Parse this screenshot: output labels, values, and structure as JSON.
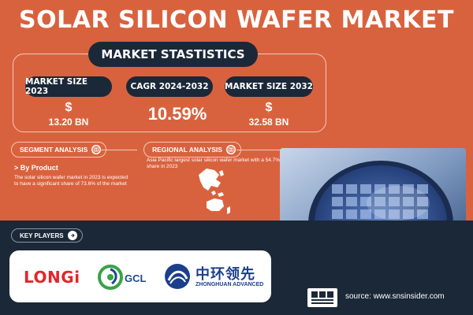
{
  "title": "SOLAR SILICON WAFER MARKET",
  "stats": {
    "heading": "MARKET STASTISTICS",
    "market_size_2023": {
      "label": "MARKET SIZE 2023",
      "currency": "$",
      "value": "13.20 BN"
    },
    "cagr": {
      "label": "CAGR 2024-2032",
      "value": "10.59%"
    },
    "market_size_2032": {
      "label": "MARKET SIZE 2032",
      "currency": "$",
      "value": "32.58 BN"
    }
  },
  "segment": {
    "label": "SEGMENT ANALYSIS",
    "icon": "globe-icon",
    "subheading": "> By Product",
    "text": "The solar silicon wafer market in 2023 is expected to have a significant share of 73.6% of the market"
  },
  "regional": {
    "label": "REGIONAL ANALYSIS",
    "icon": "globe-icon",
    "text": "Asia Pacific largest solar silicon wafer market with a 54.7% share in 2023"
  },
  "key_players": {
    "label": "KEY PLAYERS",
    "logos": [
      {
        "name": "LONGi"
      },
      {
        "name": "GCL"
      },
      {
        "name": "中环领先",
        "subtitle": "ZHONGHUAN ADVANCED"
      }
    ]
  },
  "source": {
    "text": "source: www.snsinsider.com"
  },
  "colors": {
    "background": "#d9623e",
    "dark": "#1b2838",
    "accent_red": "#e2262b",
    "accent_blue": "#1b3f8c"
  }
}
